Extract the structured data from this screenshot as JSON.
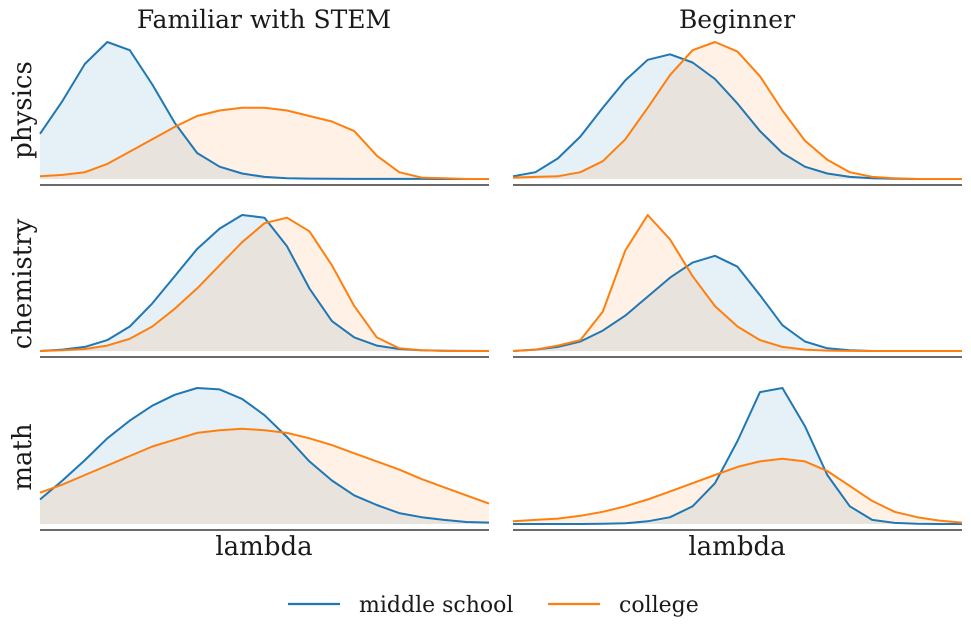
{
  "chart_data": {
    "type": "line",
    "layout": "small-multiples",
    "column_titles": [
      "Familiar with STEM",
      "Beginner"
    ],
    "row_labels": [
      "physics",
      "chemistry",
      "math"
    ],
    "xlabel": "lambda",
    "fill_under_lines": true,
    "legend": {
      "placement": "bottom-center",
      "entries": [
        {
          "name": "middle school",
          "color": "#1f77b4"
        },
        {
          "name": "college",
          "color": "#ff7f0e"
        }
      ]
    },
    "x_index": [
      0,
      1,
      2,
      3,
      4,
      5,
      6,
      7,
      8,
      9,
      10,
      11,
      12,
      13,
      14,
      15,
      16,
      17,
      18,
      19,
      20
    ],
    "ylim": [
      0,
      1
    ],
    "panels": [
      {
        "row": "physics",
        "column": "Familiar with STEM",
        "series": [
          {
            "name": "middle school",
            "values": [
              0.33,
              0.57,
              0.84,
              1.0,
              0.94,
              0.69,
              0.41,
              0.19,
              0.09,
              0.04,
              0.015,
              0.006,
              0.003,
              0.002,
              0.001,
              0.001,
              0.001,
              0.001,
              0.0,
              0.0,
              0.0
            ]
          },
          {
            "name": "college",
            "values": [
              0.02,
              0.03,
              0.05,
              0.11,
              0.2,
              0.29,
              0.38,
              0.46,
              0.5,
              0.52,
              0.52,
              0.5,
              0.46,
              0.42,
              0.35,
              0.17,
              0.05,
              0.01,
              0.005,
              0.0,
              0.0
            ]
          }
        ]
      },
      {
        "row": "physics",
        "column": "Beginner",
        "series": [
          {
            "name": "middle school",
            "values": [
              0.02,
              0.05,
              0.15,
              0.31,
              0.52,
              0.72,
              0.87,
              0.91,
              0.85,
              0.73,
              0.55,
              0.35,
              0.19,
              0.09,
              0.04,
              0.015,
              0.005,
              0.002,
              0.0,
              0.0,
              0.0
            ]
          },
          {
            "name": "college",
            "values": [
              0.01,
              0.015,
              0.02,
              0.05,
              0.13,
              0.29,
              0.52,
              0.76,
              0.94,
              1.0,
              0.93,
              0.75,
              0.5,
              0.28,
              0.14,
              0.05,
              0.015,
              0.005,
              0.0,
              0.0,
              0.0
            ]
          }
        ]
      },
      {
        "row": "chemistry",
        "column": "Familiar with STEM",
        "series": [
          {
            "name": "middle school",
            "values": [
              0.0,
              0.01,
              0.03,
              0.08,
              0.18,
              0.35,
              0.55,
              0.75,
              0.9,
              1.0,
              0.98,
              0.77,
              0.46,
              0.22,
              0.1,
              0.04,
              0.015,
              0.006,
              0.002,
              0.001,
              0.0
            ]
          },
          {
            "name": "college",
            "values": [
              0.0,
              0.005,
              0.015,
              0.04,
              0.09,
              0.18,
              0.31,
              0.46,
              0.63,
              0.8,
              0.94,
              0.98,
              0.88,
              0.63,
              0.33,
              0.1,
              0.02,
              0.005,
              0.001,
              0.0,
              0.0
            ]
          }
        ]
      },
      {
        "row": "chemistry",
        "column": "Beginner",
        "series": [
          {
            "name": "middle school",
            "values": [
              0.0,
              0.01,
              0.03,
              0.07,
              0.15,
              0.26,
              0.4,
              0.54,
              0.65,
              0.7,
              0.62,
              0.41,
              0.19,
              0.07,
              0.02,
              0.005,
              0.0,
              0.0,
              0.0,
              0.0,
              0.0
            ]
          },
          {
            "name": "college",
            "values": [
              0.0,
              0.01,
              0.04,
              0.08,
              0.29,
              0.74,
              1.0,
              0.82,
              0.55,
              0.33,
              0.18,
              0.08,
              0.03,
              0.01,
              0.003,
              0.001,
              0.0,
              0.0,
              0.0,
              0.0,
              0.0
            ]
          }
        ]
      },
      {
        "row": "math",
        "column": "Familiar with STEM",
        "series": [
          {
            "name": "middle school",
            "values": [
              0.18,
              0.32,
              0.47,
              0.63,
              0.76,
              0.87,
              0.95,
              1.0,
              0.99,
              0.92,
              0.8,
              0.64,
              0.46,
              0.32,
              0.21,
              0.14,
              0.08,
              0.05,
              0.03,
              0.015,
              0.01
            ]
          },
          {
            "name": "college",
            "values": [
              0.23,
              0.29,
              0.36,
              0.43,
              0.5,
              0.57,
              0.62,
              0.67,
              0.69,
              0.7,
              0.69,
              0.67,
              0.63,
              0.58,
              0.52,
              0.46,
              0.4,
              0.33,
              0.27,
              0.21,
              0.15
            ]
          }
        ]
      },
      {
        "row": "math",
        "column": "Beginner",
        "series": [
          {
            "name": "middle school",
            "values": [
              0.0,
              0.0,
              0.0,
              0.0,
              0.002,
              0.005,
              0.02,
              0.05,
              0.13,
              0.3,
              0.61,
              0.97,
              1.0,
              0.72,
              0.36,
              0.13,
              0.03,
              0.008,
              0.002,
              0.0,
              0.0
            ]
          },
          {
            "name": "college",
            "values": [
              0.02,
              0.03,
              0.04,
              0.06,
              0.09,
              0.13,
              0.18,
              0.24,
              0.3,
              0.36,
              0.42,
              0.46,
              0.48,
              0.46,
              0.39,
              0.28,
              0.17,
              0.09,
              0.05,
              0.025,
              0.01
            ]
          }
        ]
      }
    ]
  }
}
